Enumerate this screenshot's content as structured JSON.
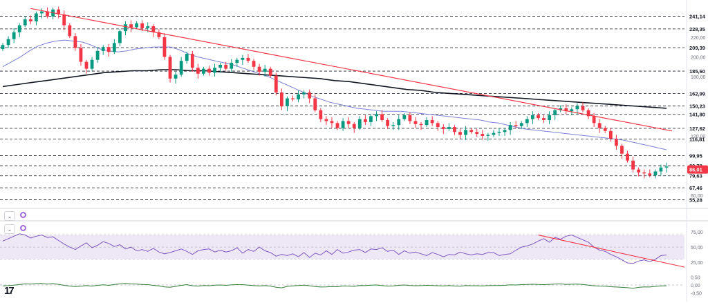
{
  "chart_data": [
    {
      "type": "candlestick",
      "title": "",
      "ylabel": "",
      "ylim": [
        48,
        252
      ],
      "y_ticks": [
        "220,00",
        "200,00",
        "180,00",
        "120,00",
        "60,00"
      ],
      "y_tick_values": [
        220,
        200,
        180,
        120,
        60
      ],
      "level_lines": [
        241.14,
        228.35,
        209.39,
        185.6,
        162.99,
        150.23,
        141.8,
        127.62,
        116.81,
        99.95,
        89.78,
        79.63,
        67.46,
        55.28
      ],
      "level_labels": [
        "241,14",
        "228,35",
        "209,39",
        "185,60",
        "162,99",
        "150,23",
        "141,80",
        "127,62",
        "116,81",
        "99,95",
        "89,78",
        "79,63",
        "67,46",
        "55,28"
      ],
      "current_price": 86.01,
      "current_price_label": "86,01",
      "closes": [
        212,
        218,
        225,
        232,
        238,
        236,
        244,
        246,
        241,
        248,
        243,
        232,
        221,
        209,
        195,
        188,
        197,
        206,
        210,
        205,
        214,
        226,
        233,
        230,
        234,
        229,
        231,
        225,
        220,
        200,
        178,
        182,
        196,
        203,
        189,
        183,
        188,
        184,
        189,
        192,
        188,
        194,
        197,
        199,
        196,
        190,
        185,
        188,
        181,
        164,
        150,
        158,
        157,
        162,
        164,
        158,
        146,
        137,
        135,
        133,
        128,
        135,
        132,
        128,
        137,
        134,
        140,
        142,
        136,
        130,
        131,
        137,
        141,
        135,
        132,
        131,
        136,
        133,
        129,
        127,
        129,
        124,
        121,
        126,
        124,
        122,
        120,
        121,
        123,
        124,
        126,
        131,
        130,
        133,
        137,
        141,
        138,
        136,
        141,
        146,
        148,
        145,
        147,
        150,
        146,
        140,
        133,
        128,
        125,
        117,
        110,
        102,
        95,
        86,
        83,
        82,
        80,
        84,
        88,
        89
      ],
      "series": [
        {
          "name": "",
          "type": "sma-short",
          "color": "#7b7fd6",
          "values": [
            190,
            195,
            200,
            206,
            211,
            214,
            216,
            217,
            216,
            215,
            212,
            208,
            206,
            205,
            206,
            208,
            209,
            210,
            210,
            210,
            207,
            203,
            200,
            198,
            196,
            194,
            192,
            189,
            186,
            183,
            180,
            176,
            172,
            168,
            164,
            160,
            157,
            154,
            152,
            150,
            148,
            147,
            146,
            145,
            145,
            145,
            144,
            143,
            142,
            141,
            140,
            139,
            138,
            137,
            136,
            134,
            133,
            131,
            129,
            127,
            126,
            125,
            124,
            123,
            122,
            121,
            120,
            119,
            118,
            117,
            116,
            114,
            112,
            110,
            108,
            106
          ]
        },
        {
          "name": "",
          "type": "sma-long",
          "color": "#131722",
          "values": [
            170,
            172,
            174,
            176,
            178,
            180,
            182,
            184,
            185,
            186,
            186,
            187,
            187,
            186,
            186,
            185,
            184,
            183,
            182,
            181,
            180,
            179,
            178,
            176,
            175,
            173,
            171,
            169,
            167,
            166,
            164,
            163,
            162,
            161,
            160,
            159,
            158,
            157,
            156,
            155,
            154,
            153,
            152,
            151,
            150,
            149,
            148
          ]
        }
      ],
      "trendline": {
        "from": [
          5,
          249
        ],
        "to": [
          120,
          125
        ],
        "color": "#f23645"
      }
    },
    {
      "type": "line",
      "title": "",
      "ylim": [
        16,
        82
      ],
      "y_ticks": [
        "75,00",
        "50,00",
        "25,00"
      ],
      "y_tick_values": [
        75,
        50,
        25
      ],
      "band": [
        30,
        70
      ],
      "values": [
        60,
        64,
        68,
        72,
        70,
        65,
        68,
        70,
        66,
        67,
        61,
        55,
        50,
        46,
        52,
        57,
        49,
        53,
        59,
        56,
        51,
        54,
        47,
        50,
        44,
        46,
        43,
        48,
        42,
        39,
        41,
        44,
        47,
        43,
        38,
        44,
        46,
        47,
        42,
        45,
        42,
        44,
        49,
        40,
        46,
        43,
        50,
        44,
        41,
        35,
        38,
        36,
        39,
        34,
        41,
        33,
        40,
        37,
        44,
        38,
        46,
        40,
        42,
        45,
        46,
        41,
        47,
        46,
        49,
        43,
        45,
        38,
        44,
        40,
        42,
        39,
        36,
        41,
        38,
        34,
        38,
        37,
        42,
        39,
        37,
        39,
        38,
        41,
        41,
        36,
        38,
        39,
        45,
        50,
        52,
        55,
        60,
        64,
        58,
        66,
        63,
        68,
        70,
        66,
        62,
        58,
        50,
        45,
        43,
        38,
        34,
        29,
        24,
        23,
        27,
        29,
        26,
        30,
        36,
        37
      ],
      "line_color": "#7e57c2",
      "trendline": {
        "from": [
          96,
          70
        ],
        "to": [
          120,
          17
        ],
        "color": "#f23645"
      }
    },
    {
      "type": "line",
      "title": "",
      "ylim": [
        -0.75,
        0.75
      ],
      "y_ticks": [
        "0,50",
        "0,00",
        "-0,50"
      ],
      "y_tick_values": [
        0.5,
        0,
        -0.5
      ],
      "values": [
        -0.06,
        -0.04,
        -0.01,
        0.03,
        0.07,
        0.06,
        0.09,
        0.1,
        0.06,
        0.09,
        0.04,
        -0.02,
        -0.07,
        -0.1,
        -0.08,
        -0.04,
        -0.07,
        -0.02,
        0.01,
        -0.02,
        0.03,
        0.07,
        0.1,
        0.07,
        0.06,
        0.03,
        0.02,
        -0.02,
        -0.06,
        -0.12,
        -0.14,
        -0.09,
        -0.02,
        0.02,
        -0.05,
        -0.07,
        -0.03,
        -0.05,
        -0.01,
        0.0,
        -0.02,
        0.01,
        0.02,
        0.02,
        -0.01,
        -0.04,
        -0.06,
        -0.04,
        -0.07,
        -0.14,
        -0.18,
        -0.09,
        -0.06,
        -0.03,
        -0.01,
        -0.05,
        -0.1,
        -0.13,
        -0.12,
        -0.1,
        -0.11,
        -0.06,
        -0.07,
        -0.09,
        -0.03,
        -0.04,
        -0.01,
        0.0,
        -0.04,
        -0.07,
        -0.06,
        -0.02,
        0.0,
        -0.03,
        -0.05,
        -0.04,
        -0.02,
        -0.03,
        -0.05,
        -0.06,
        -0.04,
        -0.06,
        -0.08,
        -0.04,
        -0.05,
        -0.05,
        -0.06,
        -0.04,
        -0.03,
        -0.03,
        -0.02,
        0.01,
        0.0,
        0.02,
        0.03,
        0.05,
        0.03,
        0.02,
        0.04,
        0.06,
        0.07,
        0.04,
        0.05,
        0.06,
        0.03,
        -0.01,
        -0.05,
        -0.07,
        -0.08,
        -0.11,
        -0.13,
        -0.15,
        -0.17,
        -0.21,
        -0.15,
        -0.12,
        -0.13,
        -0.09,
        -0.06,
        -0.05
      ],
      "line_color": "#2e7d32"
    }
  ],
  "panel_icons": [
    "chevron-down-icon",
    "indicator-icon"
  ],
  "logo_text": "17",
  "colors": {
    "up": "#089981",
    "down": "#f23645",
    "grid": "#e0e3eb",
    "level": "#131722",
    "rsi": "#7e57c2",
    "macd": "#2e7d32",
    "band_fill": "#ede7f6"
  }
}
